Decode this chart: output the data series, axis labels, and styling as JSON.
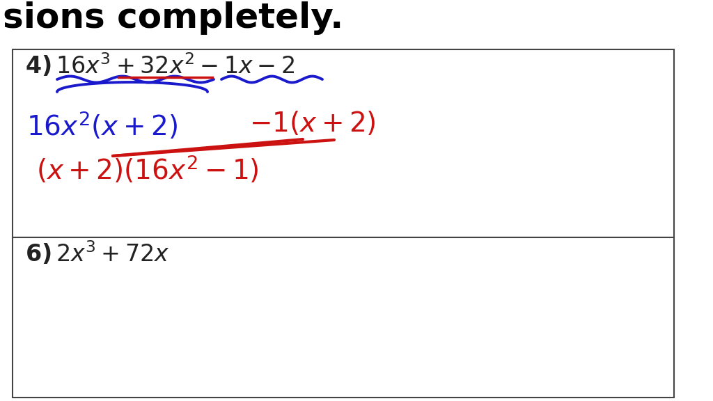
{
  "bg_color": "#ffffff",
  "header_text": "sions completely.",
  "header_color": "#000000",
  "blue_color": "#1a1acc",
  "red_color": "#cc1111",
  "black_color": "#111111",
  "dark_color": "#222222"
}
